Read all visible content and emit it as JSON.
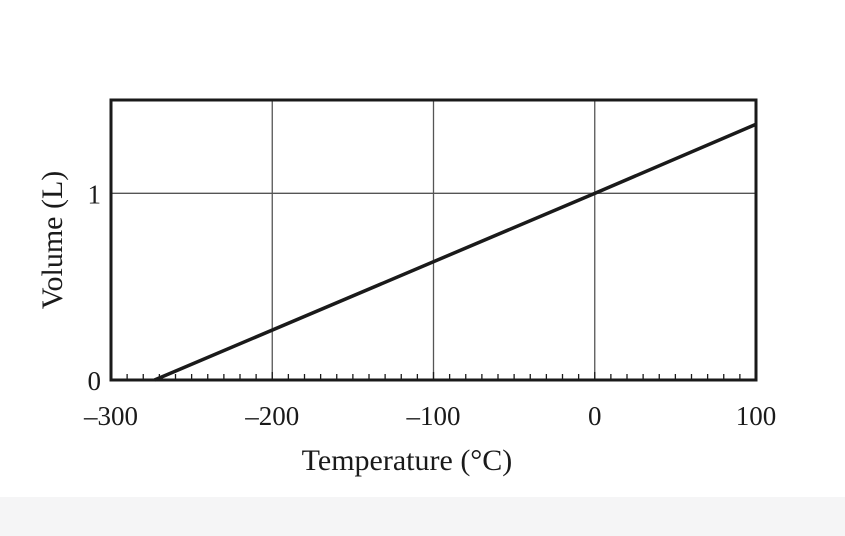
{
  "chart_data": {
    "type": "line",
    "title": "",
    "xlabel": "Temperature (°C)",
    "ylabel": "Volume (L)",
    "xlim": [
      -300,
      100
    ],
    "ylim": [
      0,
      1.5
    ],
    "x_ticks": [
      -300,
      -200,
      -100,
      0,
      100
    ],
    "x_tick_labels": [
      "–300",
      "–200",
      "–100",
      "0",
      "100"
    ],
    "x_minor_tick_step": 10,
    "y_ticks": [
      0,
      1
    ],
    "y_tick_labels": [
      "0",
      "1"
    ],
    "grid": true,
    "legend": "none",
    "line_color": "#1a1a1a",
    "series": [
      {
        "x": [
          -273,
          0,
          100
        ],
        "y": [
          0,
          1.0,
          1.37
        ]
      }
    ]
  }
}
